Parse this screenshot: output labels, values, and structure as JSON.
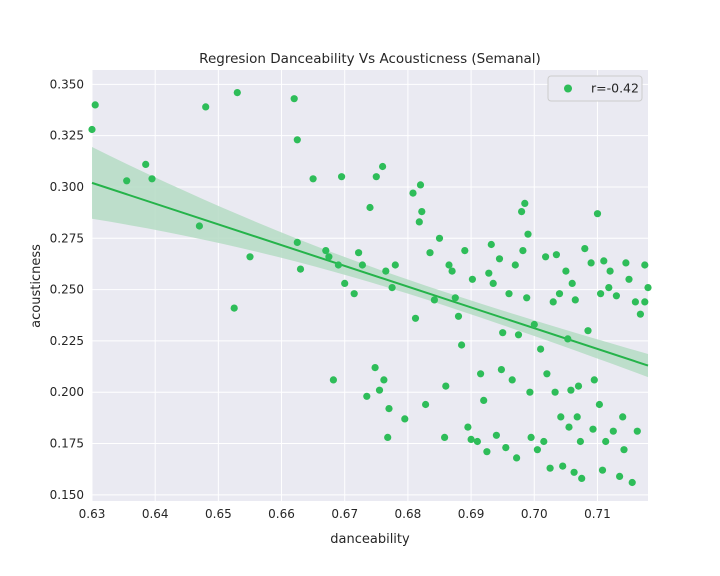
{
  "chart_data": {
    "type": "scatter",
    "title": "Regresion Danceability Vs Acousticness (Semanal)",
    "xlabel": "danceability",
    "ylabel": "acousticness",
    "xlim": [
      0.63,
      0.718
    ],
    "ylim": [
      0.147,
      0.357
    ],
    "xticks": [
      "0.63",
      "0.64",
      "0.65",
      "0.66",
      "0.67",
      "0.68",
      "0.69",
      "0.70",
      "0.71"
    ],
    "yticks": [
      "0.150",
      "0.175",
      "0.200",
      "0.225",
      "0.250",
      "0.275",
      "0.300",
      "0.325",
      "0.350"
    ],
    "grid": true,
    "legend_position": "top-right",
    "colors": {
      "points": "#2ebd59",
      "line": "#25b34a",
      "band": "#b5dcc4",
      "plot_bg": "#eaeaf2",
      "grid": "#ffffff"
    },
    "series": [
      {
        "name": "r=-0.42",
        "points": [
          [
            0.63,
            0.328
          ],
          [
            0.6305,
            0.34
          ],
          [
            0.6355,
            0.303
          ],
          [
            0.6385,
            0.311
          ],
          [
            0.6395,
            0.304
          ],
          [
            0.647,
            0.281
          ],
          [
            0.648,
            0.339
          ],
          [
            0.6525,
            0.241
          ],
          [
            0.653,
            0.346
          ],
          [
            0.655,
            0.266
          ],
          [
            0.662,
            0.343
          ],
          [
            0.6625,
            0.323
          ],
          [
            0.6625,
            0.273
          ],
          [
            0.663,
            0.26
          ],
          [
            0.665,
            0.304
          ],
          [
            0.667,
            0.269
          ],
          [
            0.6675,
            0.266
          ],
          [
            0.6682,
            0.206
          ],
          [
            0.669,
            0.262
          ],
          [
            0.6695,
            0.305
          ],
          [
            0.67,
            0.253
          ],
          [
            0.6715,
            0.248
          ],
          [
            0.6722,
            0.268
          ],
          [
            0.6728,
            0.262
          ],
          [
            0.6735,
            0.198
          ],
          [
            0.674,
            0.29
          ],
          [
            0.6748,
            0.212
          ],
          [
            0.675,
            0.305
          ],
          [
            0.6755,
            0.201
          ],
          [
            0.676,
            0.31
          ],
          [
            0.6762,
            0.206
          ],
          [
            0.6765,
            0.259
          ],
          [
            0.6768,
            0.178
          ],
          [
            0.677,
            0.192
          ],
          [
            0.6775,
            0.251
          ],
          [
            0.678,
            0.262
          ],
          [
            0.6795,
            0.187
          ],
          [
            0.6808,
            0.297
          ],
          [
            0.6812,
            0.236
          ],
          [
            0.6818,
            0.283
          ],
          [
            0.682,
            0.301
          ],
          [
            0.6822,
            0.288
          ],
          [
            0.6828,
            0.194
          ],
          [
            0.6835,
            0.268
          ],
          [
            0.6842,
            0.245
          ],
          [
            0.685,
            0.275
          ],
          [
            0.6858,
            0.178
          ],
          [
            0.686,
            0.203
          ],
          [
            0.6865,
            0.262
          ],
          [
            0.687,
            0.259
          ],
          [
            0.6875,
            0.246
          ],
          [
            0.688,
            0.237
          ],
          [
            0.6885,
            0.223
          ],
          [
            0.689,
            0.269
          ],
          [
            0.6895,
            0.183
          ],
          [
            0.69,
            0.177
          ],
          [
            0.6902,
            0.255
          ],
          [
            0.691,
            0.176
          ],
          [
            0.6915,
            0.209
          ],
          [
            0.692,
            0.196
          ],
          [
            0.6925,
            0.171
          ],
          [
            0.6928,
            0.258
          ],
          [
            0.6932,
            0.272
          ],
          [
            0.6935,
            0.253
          ],
          [
            0.694,
            0.179
          ],
          [
            0.6945,
            0.265
          ],
          [
            0.6948,
            0.211
          ],
          [
            0.695,
            0.229
          ],
          [
            0.6955,
            0.173
          ],
          [
            0.696,
            0.248
          ],
          [
            0.6965,
            0.206
          ],
          [
            0.697,
            0.262
          ],
          [
            0.6972,
            0.168
          ],
          [
            0.6975,
            0.228
          ],
          [
            0.698,
            0.288
          ],
          [
            0.6982,
            0.269
          ],
          [
            0.6985,
            0.292
          ],
          [
            0.6988,
            0.246
          ],
          [
            0.699,
            0.277
          ],
          [
            0.6993,
            0.2
          ],
          [
            0.6995,
            0.178
          ],
          [
            0.7,
            0.233
          ],
          [
            0.7005,
            0.172
          ],
          [
            0.701,
            0.221
          ],
          [
            0.7015,
            0.176
          ],
          [
            0.7018,
            0.266
          ],
          [
            0.702,
            0.209
          ],
          [
            0.7025,
            0.163
          ],
          [
            0.703,
            0.244
          ],
          [
            0.7033,
            0.2
          ],
          [
            0.7035,
            0.267
          ],
          [
            0.704,
            0.248
          ],
          [
            0.7042,
            0.188
          ],
          [
            0.7045,
            0.164
          ],
          [
            0.705,
            0.259
          ],
          [
            0.7053,
            0.226
          ],
          [
            0.7055,
            0.183
          ],
          [
            0.7058,
            0.201
          ],
          [
            0.706,
            0.253
          ],
          [
            0.7063,
            0.161
          ],
          [
            0.7065,
            0.245
          ],
          [
            0.7068,
            0.188
          ],
          [
            0.707,
            0.203
          ],
          [
            0.7073,
            0.176
          ],
          [
            0.7075,
            0.158
          ],
          [
            0.708,
            0.27
          ],
          [
            0.7085,
            0.23
          ],
          [
            0.709,
            0.263
          ],
          [
            0.7093,
            0.182
          ],
          [
            0.7095,
            0.206
          ],
          [
            0.71,
            0.287
          ],
          [
            0.7103,
            0.194
          ],
          [
            0.7105,
            0.248
          ],
          [
            0.7108,
            0.162
          ],
          [
            0.711,
            0.264
          ],
          [
            0.7113,
            0.176
          ],
          [
            0.7118,
            0.251
          ],
          [
            0.712,
            0.259
          ],
          [
            0.7125,
            0.181
          ],
          [
            0.713,
            0.247
          ],
          [
            0.7135,
            0.159
          ],
          [
            0.714,
            0.188
          ],
          [
            0.7142,
            0.172
          ],
          [
            0.7145,
            0.263
          ],
          [
            0.715,
            0.255
          ],
          [
            0.7155,
            0.156
          ],
          [
            0.716,
            0.244
          ],
          [
            0.7163,
            0.181
          ],
          [
            0.7168,
            0.238
          ],
          [
            0.7175,
            0.262
          ],
          [
            0.718,
            0.251
          ],
          [
            0.7175,
            0.244
          ]
        ]
      }
    ],
    "regression": {
      "x": [
        0.63,
        0.718
      ],
      "y": [
        0.302,
        0.213
      ],
      "ci_low": [
        0.284,
        0.204
      ],
      "ci_high": [
        0.319,
        0.223
      ]
    }
  }
}
